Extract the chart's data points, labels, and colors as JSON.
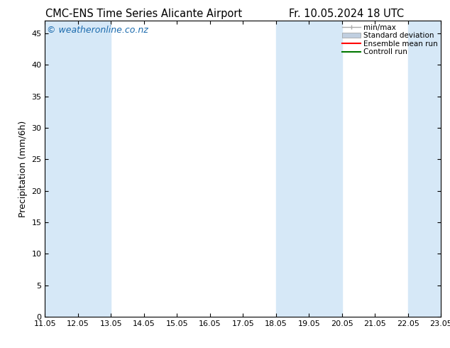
{
  "title_left": "CMC-ENS Time Series Alicante Airport",
  "title_right": "Fr. 10.05.2024 18 UTC",
  "ylabel": "Precipitation (mm/6h)",
  "watermark": "© weatheronline.co.nz",
  "xlim": [
    11.05,
    23.05
  ],
  "ylim": [
    0,
    47
  ],
  "yticks": [
    0,
    5,
    10,
    15,
    20,
    25,
    30,
    35,
    40,
    45
  ],
  "xtick_labels": [
    "11.05",
    "12.05",
    "13.05",
    "14.05",
    "15.05",
    "16.05",
    "17.05",
    "18.05",
    "19.05",
    "20.05",
    "21.05",
    "22.05",
    "23.05"
  ],
  "xtick_positions": [
    11.05,
    12.05,
    13.05,
    14.05,
    15.05,
    16.05,
    17.05,
    18.05,
    19.05,
    20.05,
    21.05,
    22.05,
    23.05
  ],
  "shaded_bands": [
    [
      11.05,
      12.05
    ],
    [
      12.05,
      13.05
    ],
    [
      18.05,
      19.05
    ],
    [
      19.05,
      20.05
    ],
    [
      22.05,
      23.05
    ]
  ],
  "shade_color": "#d6e8f7",
  "bg_color": "#ffffff",
  "title_fontsize": 10.5,
  "tick_fontsize": 8,
  "ylabel_fontsize": 9,
  "watermark_color": "#1a6aad",
  "watermark_fontsize": 9,
  "legend_fontsize": 7.5,
  "minmax_color": "#aaaaaa",
  "stddev_color": "#c0cfe0",
  "ensemble_color": "#ff0000",
  "control_color": "#007700"
}
